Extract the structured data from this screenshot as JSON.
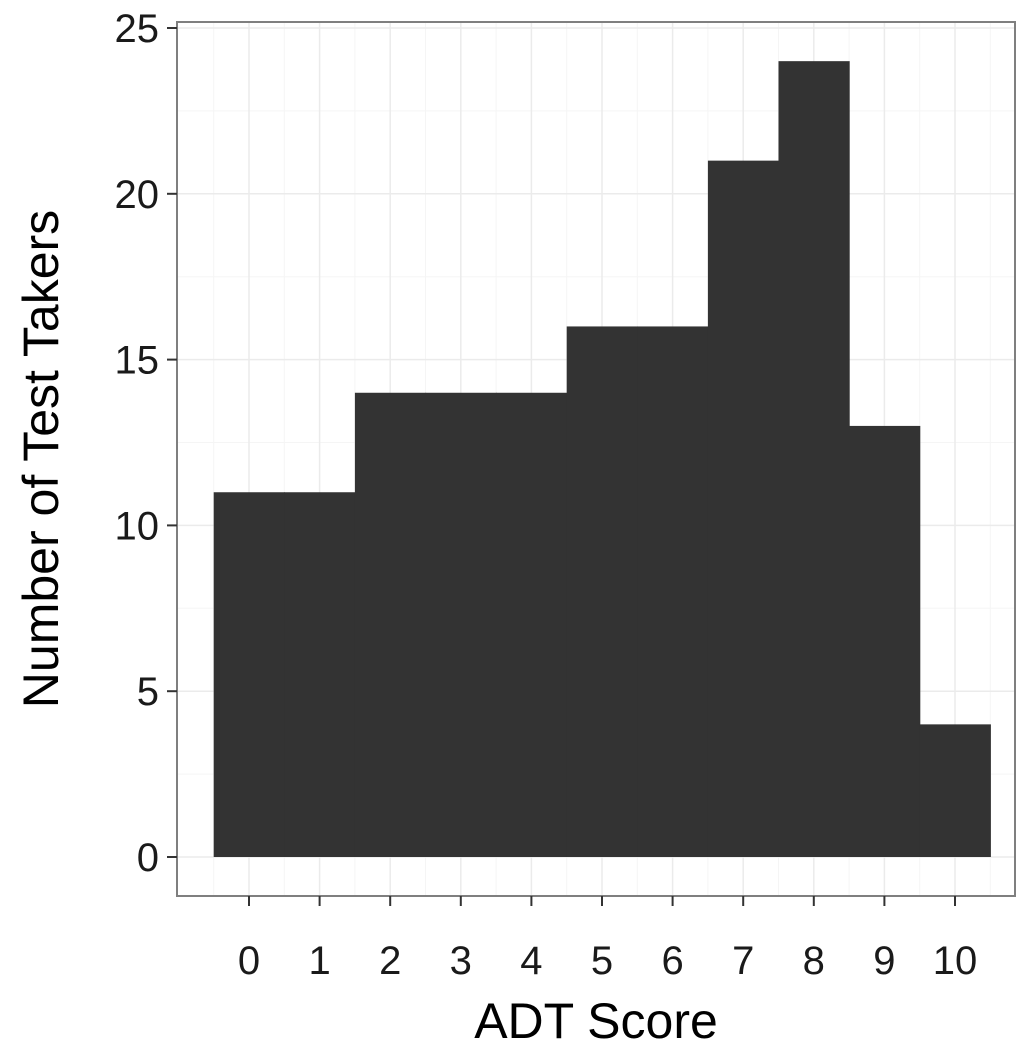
{
  "chart_data": {
    "type": "bar",
    "title": "",
    "xlabel": "ADT Score",
    "ylabel": "Number of Test Takers",
    "categories": [
      "0",
      "1",
      "2",
      "3",
      "4",
      "5",
      "6",
      "7",
      "8",
      "9",
      "10"
    ],
    "values": [
      11,
      11,
      14,
      14,
      14,
      16,
      16,
      21,
      24,
      13,
      4
    ],
    "ylim": [
      0,
      25.5
    ],
    "xlim": [
      -0.5,
      10.5
    ],
    "y_ticks": [
      0,
      5,
      10,
      15,
      20,
      25
    ],
    "y_tick_labels": [
      "0",
      "5",
      "10",
      "15",
      "20",
      "25"
    ],
    "grid": true,
    "legend": "none",
    "colors": {
      "bar": "#333333",
      "panel_background": "#ffffff",
      "panel_border": "#7f7f7f",
      "grid_major": "#ebebeb",
      "grid_minor": "#f5f5f5",
      "tick": "#333333"
    }
  }
}
